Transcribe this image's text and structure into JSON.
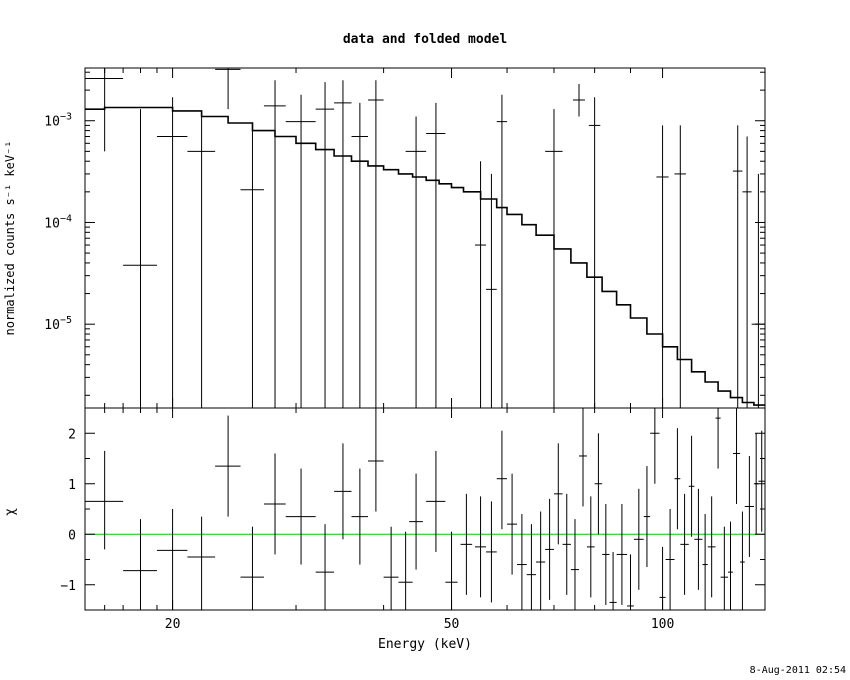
{
  "title": "data and folded model",
  "timestamp": "8-Aug-2011 02:54",
  "colors": {
    "axes": "#000000",
    "data": "#000000",
    "model": "#000000",
    "zero_line": "#00cc00"
  },
  "chart_data": [
    {
      "type": "line",
      "panel": "top",
      "ylabel": "normalized counts s⁻¹ keV⁻¹",
      "xscale": "log",
      "yscale": "log",
      "xlim": [
        15,
        140
      ],
      "ylim": [
        1.5e-06,
        0.0033
      ],
      "ytick_labels": [
        {
          "value": 0.001,
          "mant": "10",
          "exp": "−3"
        },
        {
          "value": 0.0001,
          "mant": "10",
          "exp": "−4"
        },
        {
          "value": 1e-05,
          "mant": "10",
          "exp": "−5"
        }
      ],
      "series": [
        {
          "role": "data-points",
          "points": [
            {
              "x": 16.0,
              "xlo": 15.0,
              "xhi": 17.0,
              "y": 0.0026,
              "ylo": 0.0005,
              "yhi": 0.0033
            },
            {
              "x": 18.0,
              "xlo": 17.0,
              "xhi": 19.0,
              "y": 3.8e-05,
              "ylo": 1.5e-06,
              "yhi": 0.0013
            },
            {
              "x": 20.0,
              "xlo": 19.0,
              "xhi": 21.0,
              "y": 0.0007,
              "ylo": 1.5e-06,
              "yhi": 0.0017
            },
            {
              "x": 22.0,
              "xlo": 21.0,
              "xhi": 23.0,
              "y": 0.0005,
              "ylo": 1.5e-06,
              "yhi": 0.0012
            },
            {
              "x": 24.0,
              "xlo": 23.0,
              "xhi": 25.0,
              "y": 0.0032,
              "ylo": 0.0013,
              "yhi": 0.0033
            },
            {
              "x": 26.0,
              "xlo": 25.0,
              "xhi": 27.0,
              "y": 0.00021,
              "ylo": 1.5e-06,
              "yhi": 0.0009
            },
            {
              "x": 28.0,
              "xlo": 27.0,
              "xhi": 29.0,
              "y": 0.0014,
              "ylo": 1.5e-06,
              "yhi": 0.0025
            },
            {
              "x": 30.5,
              "xlo": 29.0,
              "xhi": 32.0,
              "y": 0.00098,
              "ylo": 1.5e-06,
              "yhi": 0.0018
            },
            {
              "x": 33.0,
              "xlo": 32.0,
              "xhi": 34.0,
              "y": 0.0013,
              "ylo": 1.5e-06,
              "yhi": 0.0024
            },
            {
              "x": 35.0,
              "xlo": 34.0,
              "xhi": 36.0,
              "y": 0.0015,
              "ylo": 1.5e-06,
              "yhi": 0.0025
            },
            {
              "x": 37.0,
              "xlo": 36.0,
              "xhi": 38.0,
              "y": 0.0007,
              "ylo": 1.5e-06,
              "yhi": 0.0015
            },
            {
              "x": 39.0,
              "xlo": 38.0,
              "xhi": 40.0,
              "y": 0.0016,
              "ylo": 1.5e-06,
              "yhi": 0.0025
            },
            {
              "x": 44.5,
              "xlo": 43.0,
              "xhi": 46.0,
              "y": 0.0005,
              "ylo": 1.5e-06,
              "yhi": 0.0011
            },
            {
              "x": 47.5,
              "xlo": 46.0,
              "xhi": 49.0,
              "y": 0.00075,
              "ylo": 1.5e-06,
              "yhi": 0.0015
            },
            {
              "x": 55.0,
              "xlo": 54.0,
              "xhi": 56.0,
              "y": 6e-05,
              "ylo": 1.5e-06,
              "yhi": 0.0004
            },
            {
              "x": 57.0,
              "xlo": 56.0,
              "xhi": 58.0,
              "y": 2.2e-05,
              "ylo": 1.5e-06,
              "yhi": 0.0003
            },
            {
              "x": 59.0,
              "xlo": 58.0,
              "xhi": 60.0,
              "y": 0.00098,
              "ylo": 1.5e-06,
              "yhi": 0.0018
            },
            {
              "x": 70.0,
              "xlo": 68.0,
              "xhi": 72.0,
              "y": 0.0005,
              "ylo": 1.5e-06,
              "yhi": 0.0013
            },
            {
              "x": 76.0,
              "xlo": 74.5,
              "xhi": 77.5,
              "y": 0.0016,
              "ylo": 0.0011,
              "yhi": 0.0023
            },
            {
              "x": 80.0,
              "xlo": 78.5,
              "xhi": 81.5,
              "y": 0.0009,
              "ylo": 1.5e-06,
              "yhi": 0.0017
            },
            {
              "x": 100.0,
              "xlo": 98.0,
              "xhi": 102.0,
              "y": 0.00028,
              "ylo": 1.5e-06,
              "yhi": 0.0009
            },
            {
              "x": 106.0,
              "xlo": 104.0,
              "xhi": 108.0,
              "y": 0.0003,
              "ylo": 1.5e-06,
              "yhi": 0.0009
            },
            {
              "x": 128.0,
              "xlo": 126.0,
              "xhi": 130.0,
              "y": 0.00032,
              "ylo": 1.5e-06,
              "yhi": 0.0009
            },
            {
              "x": 132.0,
              "xlo": 130.0,
              "xhi": 134.0,
              "y": 0.0002,
              "ylo": 1.5e-06,
              "yhi": 0.0007
            },
            {
              "x": 137.0,
              "xlo": 134.0,
              "xhi": 140.0,
              "y": 1e-05,
              "ylo": 1.5e-06,
              "yhi": 0.0003
            }
          ]
        },
        {
          "role": "model",
          "x": [
            15,
            16,
            18,
            20,
            22,
            24,
            26,
            28,
            30,
            32,
            34,
            36,
            38,
            40,
            42,
            44,
            46,
            48,
            50,
            52,
            55,
            58,
            60,
            63,
            66,
            70,
            74,
            78,
            82,
            86,
            90,
            95,
            100,
            105,
            110,
            115,
            120,
            125,
            130,
            135,
            140
          ],
          "y": [
            0.0013,
            0.00135,
            0.00135,
            0.00125,
            0.0011,
            0.00095,
            0.0008,
            0.0007,
            0.0006,
            0.00052,
            0.00045,
            0.0004,
            0.00036,
            0.00033,
            0.0003,
            0.00028,
            0.00026,
            0.00024,
            0.00022,
            0.0002,
            0.00017,
            0.00014,
            0.00012,
            9.5e-05,
            7.5e-05,
            5.5e-05,
            4e-05,
            2.9e-05,
            2.1e-05,
            1.55e-05,
            1.15e-05,
            8e-06,
            6e-06,
            4.5e-06,
            3.4e-06,
            2.7e-06,
            2.2e-06,
            1.9e-06,
            1.7e-06,
            1.6e-06,
            1.55e-06
          ]
        }
      ]
    },
    {
      "type": "scatter",
      "panel": "bottom",
      "xlabel": "Energy (keV)",
      "ylabel": "χ",
      "xscale": "log",
      "xlim": [
        15,
        140
      ],
      "ylim": [
        -1.5,
        2.5
      ],
      "xtick_labels": [
        {
          "value": 20,
          "label": "20"
        },
        {
          "value": 50,
          "label": "50"
        },
        {
          "value": 100,
          "label": "100"
        }
      ],
      "ytick_labels": [
        {
          "value": -1,
          "label": "−1"
        },
        {
          "value": 0,
          "label": "0"
        },
        {
          "value": 1,
          "label": "1"
        },
        {
          "value": 2,
          "label": "2"
        }
      ],
      "zero_line": 0,
      "points": [
        {
          "x": 16.0,
          "xlo": 15.0,
          "xhi": 17.0,
          "y": 0.65,
          "ylo": -0.3,
          "yhi": 1.65
        },
        {
          "x": 18.0,
          "xlo": 17.0,
          "xhi": 19.0,
          "y": -0.72,
          "ylo": -1.5,
          "yhi": 0.3
        },
        {
          "x": 20.0,
          "xlo": 19.0,
          "xhi": 21.0,
          "y": -0.32,
          "ylo": -1.5,
          "yhi": 0.5
        },
        {
          "x": 22.0,
          "xlo": 21.0,
          "xhi": 23.0,
          "y": -0.45,
          "ylo": -1.5,
          "yhi": 0.35
        },
        {
          "x": 24.0,
          "xlo": 23.0,
          "xhi": 25.0,
          "y": 1.35,
          "ylo": 0.35,
          "yhi": 2.35
        },
        {
          "x": 26.0,
          "xlo": 25.0,
          "xhi": 27.0,
          "y": -0.85,
          "ylo": -1.5,
          "yhi": 0.15
        },
        {
          "x": 28.0,
          "xlo": 27.0,
          "xhi": 29.0,
          "y": 0.6,
          "ylo": -0.4,
          "yhi": 1.6
        },
        {
          "x": 30.5,
          "xlo": 29.0,
          "xhi": 32.0,
          "y": 0.35,
          "ylo": -0.6,
          "yhi": 1.3
        },
        {
          "x": 33.0,
          "xlo": 32.0,
          "xhi": 34.0,
          "y": -0.75,
          "ylo": -1.5,
          "yhi": 0.2
        },
        {
          "x": 35.0,
          "xlo": 34.0,
          "xhi": 36.0,
          "y": 0.85,
          "ylo": -0.1,
          "yhi": 1.8
        },
        {
          "x": 37.0,
          "xlo": 36.0,
          "xhi": 38.0,
          "y": 0.35,
          "ylo": -0.6,
          "yhi": 1.3
        },
        {
          "x": 39.0,
          "xlo": 38.0,
          "xhi": 40.0,
          "y": 1.45,
          "ylo": 0.45,
          "yhi": 2.5
        },
        {
          "x": 41.0,
          "xlo": 40.0,
          "xhi": 42.0,
          "y": -0.85,
          "ylo": -1.5,
          "yhi": 0.15
        },
        {
          "x": 43.0,
          "xlo": 42.0,
          "xhi": 44.0,
          "y": -0.95,
          "ylo": -1.5,
          "yhi": 0.05
        },
        {
          "x": 44.5,
          "xlo": 43.5,
          "xhi": 45.5,
          "y": 0.25,
          "ylo": -0.7,
          "yhi": 1.2
        },
        {
          "x": 47.5,
          "xlo": 46.0,
          "xhi": 49.0,
          "y": 0.65,
          "ylo": -0.35,
          "yhi": 1.65
        },
        {
          "x": 50.0,
          "xlo": 49.0,
          "xhi": 51.0,
          "y": -0.95,
          "ylo": -1.5,
          "yhi": 0.05
        },
        {
          "x": 52.5,
          "xlo": 51.5,
          "xhi": 53.5,
          "y": -0.2,
          "ylo": -1.2,
          "yhi": 0.8
        },
        {
          "x": 55.0,
          "xlo": 54.0,
          "xhi": 56.0,
          "y": -0.25,
          "ylo": -1.25,
          "yhi": 0.75
        },
        {
          "x": 57.0,
          "xlo": 56.0,
          "xhi": 58.0,
          "y": -0.35,
          "ylo": -1.35,
          "yhi": 0.65
        },
        {
          "x": 59.0,
          "xlo": 58.0,
          "xhi": 60.0,
          "y": 1.1,
          "ylo": 0.1,
          "yhi": 2.05
        },
        {
          "x": 61.0,
          "xlo": 60.0,
          "xhi": 62.0,
          "y": 0.2,
          "ylo": -0.8,
          "yhi": 1.2
        },
        {
          "x": 63.0,
          "xlo": 62.0,
          "xhi": 64.0,
          "y": -0.6,
          "ylo": -1.5,
          "yhi": 0.4
        },
        {
          "x": 65.0,
          "xlo": 64.0,
          "xhi": 66.0,
          "y": -0.8,
          "ylo": -1.5,
          "yhi": 0.2
        },
        {
          "x": 67.0,
          "xlo": 66.0,
          "xhi": 68.0,
          "y": -0.55,
          "ylo": -1.5,
          "yhi": 0.45
        },
        {
          "x": 69.0,
          "xlo": 68.0,
          "xhi": 70.0,
          "y": -0.3,
          "ylo": -1.3,
          "yhi": 0.7
        },
        {
          "x": 71.0,
          "xlo": 70.0,
          "xhi": 72.0,
          "y": 0.8,
          "ylo": -0.2,
          "yhi": 1.8
        },
        {
          "x": 73.0,
          "xlo": 72.0,
          "xhi": 74.0,
          "y": -0.2,
          "ylo": -1.2,
          "yhi": 0.8
        },
        {
          "x": 75.0,
          "xlo": 74.0,
          "xhi": 76.0,
          "y": -0.7,
          "ylo": -1.5,
          "yhi": 0.3
        },
        {
          "x": 77.0,
          "xlo": 76.0,
          "xhi": 78.0,
          "y": 1.55,
          "ylo": 0.55,
          "yhi": 2.5
        },
        {
          "x": 79.0,
          "xlo": 78.0,
          "xhi": 80.0,
          "y": -0.25,
          "ylo": -1.25,
          "yhi": 0.75
        },
        {
          "x": 81.0,
          "xlo": 80.0,
          "xhi": 82.0,
          "y": 1.0,
          "ylo": 0.0,
          "yhi": 2.0
        },
        {
          "x": 83.0,
          "xlo": 82.0,
          "xhi": 84.0,
          "y": -0.4,
          "ylo": -1.4,
          "yhi": 0.6
        },
        {
          "x": 85.0,
          "xlo": 84.0,
          "xhi": 86.0,
          "y": -1.35,
          "ylo": -1.5,
          "yhi": -0.35
        },
        {
          "x": 87.5,
          "xlo": 86.0,
          "xhi": 89.0,
          "y": -0.4,
          "ylo": -1.4,
          "yhi": 0.6
        },
        {
          "x": 90.0,
          "xlo": 89.0,
          "xhi": 91.0,
          "y": -1.42,
          "ylo": -1.5,
          "yhi": -0.4
        },
        {
          "x": 92.5,
          "xlo": 91.0,
          "xhi": 94.0,
          "y": -0.1,
          "ylo": -1.1,
          "yhi": 0.9
        },
        {
          "x": 95.0,
          "xlo": 94.0,
          "xhi": 96.0,
          "y": 0.35,
          "ylo": -0.65,
          "yhi": 1.35
        },
        {
          "x": 97.5,
          "xlo": 96.0,
          "xhi": 99.0,
          "y": 2.0,
          "ylo": 1.0,
          "yhi": 2.5
        },
        {
          "x": 100.0,
          "xlo": 99.0,
          "xhi": 101.0,
          "y": -1.25,
          "ylo": -1.5,
          "yhi": -0.25
        },
        {
          "x": 102.5,
          "xlo": 101.0,
          "xhi": 104.0,
          "y": -0.5,
          "ylo": -1.5,
          "yhi": 0.5
        },
        {
          "x": 105.0,
          "xlo": 104.0,
          "xhi": 106.0,
          "y": 1.1,
          "ylo": 0.1,
          "yhi": 2.1
        },
        {
          "x": 107.5,
          "xlo": 106.0,
          "xhi": 109.0,
          "y": -0.2,
          "ylo": -1.2,
          "yhi": 0.8
        },
        {
          "x": 110.0,
          "xlo": 109.0,
          "xhi": 111.0,
          "y": 0.95,
          "ylo": -0.05,
          "yhi": 1.95
        },
        {
          "x": 112.5,
          "xlo": 111.0,
          "xhi": 114.0,
          "y": -0.1,
          "ylo": -1.1,
          "yhi": 0.9
        },
        {
          "x": 115.0,
          "xlo": 114.0,
          "xhi": 116.0,
          "y": -0.6,
          "ylo": -1.5,
          "yhi": 0.4
        },
        {
          "x": 117.5,
          "xlo": 116.0,
          "xhi": 119.0,
          "y": -0.25,
          "ylo": -1.25,
          "yhi": 0.75
        },
        {
          "x": 120.0,
          "xlo": 119.0,
          "xhi": 121.0,
          "y": 2.3,
          "ylo": 1.3,
          "yhi": 2.5
        },
        {
          "x": 122.5,
          "xlo": 121.0,
          "xhi": 124.0,
          "y": -0.85,
          "ylo": -1.5,
          "yhi": 0.15
        },
        {
          "x": 125.0,
          "xlo": 124.0,
          "xhi": 126.0,
          "y": -0.75,
          "ylo": -1.5,
          "yhi": 0.25
        },
        {
          "x": 127.5,
          "xlo": 126.0,
          "xhi": 129.0,
          "y": 1.6,
          "ylo": 0.6,
          "yhi": 2.5
        },
        {
          "x": 130.0,
          "xlo": 129.0,
          "xhi": 131.0,
          "y": -0.55,
          "ylo": -1.5,
          "yhi": 0.45
        },
        {
          "x": 133.0,
          "xlo": 131.0,
          "xhi": 135.0,
          "y": 0.55,
          "ylo": -0.45,
          "yhi": 1.55
        },
        {
          "x": 136.0,
          "xlo": 135.0,
          "xhi": 137.0,
          "y": 1.0,
          "ylo": 0.0,
          "yhi": 2.0
        },
        {
          "x": 138.5,
          "xlo": 137.0,
          "xhi": 140.0,
          "y": 1.05,
          "ylo": 0.05,
          "yhi": 2.05
        }
      ]
    }
  ]
}
